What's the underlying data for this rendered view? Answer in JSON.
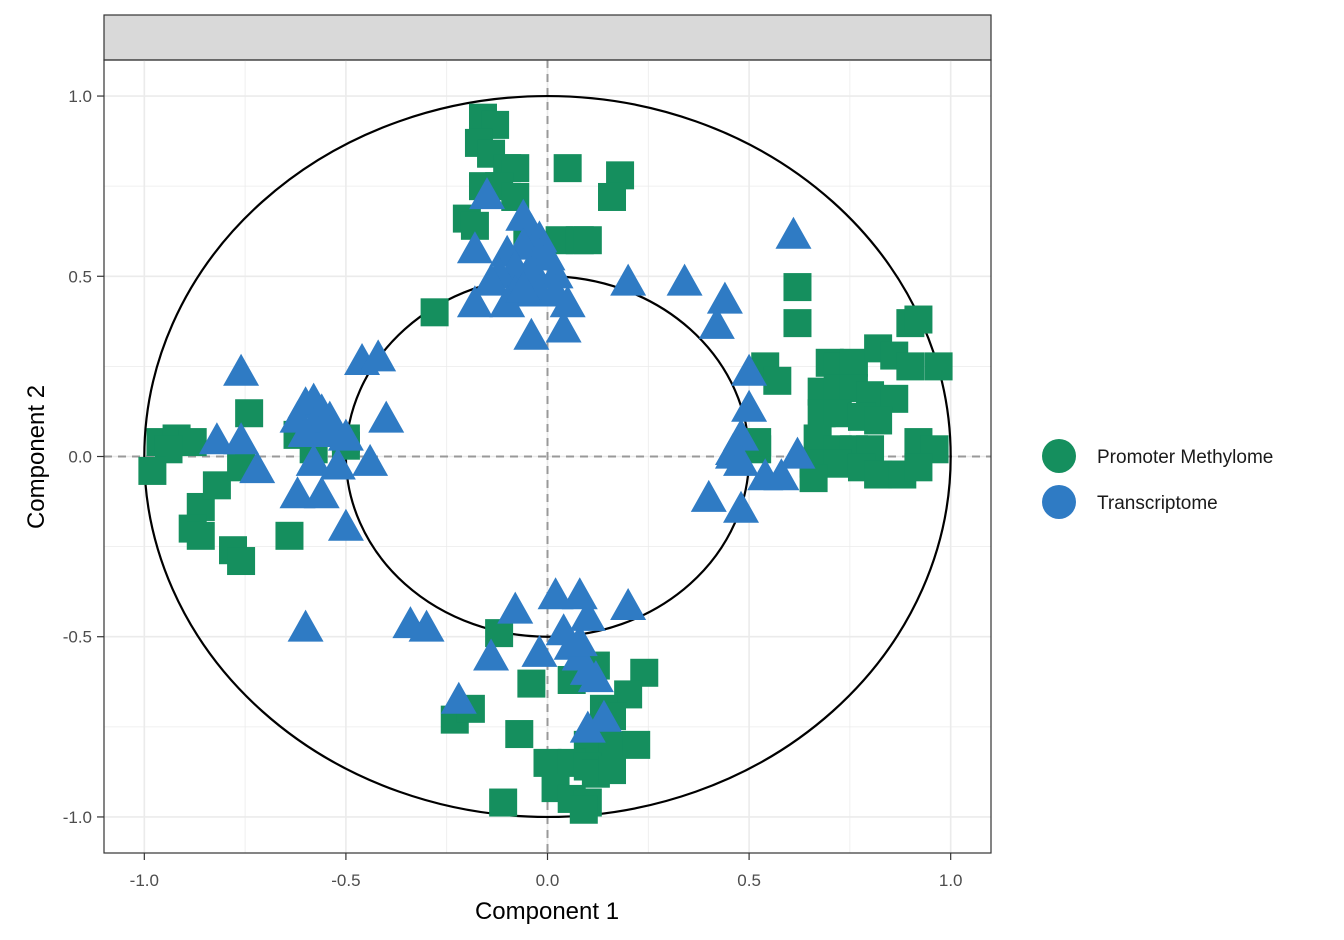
{
  "chart_data": {
    "type": "scatter",
    "title": "",
    "strip_label": "",
    "xlabel": "Component  1",
    "ylabel": "Component  2",
    "xlim": [
      -1.1,
      1.1
    ],
    "ylim": [
      -1.1,
      1.1
    ],
    "x_ticks": [
      -1.0,
      -0.5,
      0.0,
      0.5,
      1.0
    ],
    "x_tick_labels": [
      "-1.0",
      "-0.5",
      "0.0",
      "0.5",
      "1.0"
    ],
    "y_ticks": [
      -1.0,
      -0.5,
      0.0,
      0.5,
      1.0
    ],
    "y_tick_labels": [
      "-1.0",
      "-0.5",
      "0.0",
      "0.5",
      "1.0"
    ],
    "grid": true,
    "reference_lines": {
      "x": 0,
      "y": 0,
      "style": "dashed"
    },
    "circles": [
      {
        "center": [
          0,
          0
        ],
        "radius": 1.0
      },
      {
        "center": [
          0,
          0
        ],
        "radius": 0.5
      }
    ],
    "legend_position": "right",
    "series": [
      {
        "name": "Promoter Methylome",
        "color": "#158F5E",
        "marker": "square",
        "points": [
          [
            -0.16,
            0.94
          ],
          [
            -0.13,
            0.92
          ],
          [
            -0.17,
            0.87
          ],
          [
            -0.14,
            0.84
          ],
          [
            -0.1,
            0.8
          ],
          [
            -0.08,
            0.8
          ],
          [
            -0.16,
            0.75
          ],
          [
            -0.12,
            0.75
          ],
          [
            -0.08,
            0.72
          ],
          [
            0.05,
            0.8
          ],
          [
            0.18,
            0.78
          ],
          [
            0.16,
            0.72
          ],
          [
            -0.2,
            0.66
          ],
          [
            -0.18,
            0.64
          ],
          [
            -0.05,
            0.6
          ],
          [
            0.03,
            0.6
          ],
          [
            0.08,
            0.6
          ],
          [
            0.1,
            0.6
          ],
          [
            -0.28,
            0.4
          ],
          [
            0.62,
            0.47
          ],
          [
            0.62,
            0.37
          ],
          [
            0.54,
            0.25
          ],
          [
            0.57,
            0.21
          ],
          [
            0.7,
            0.26
          ],
          [
            0.72,
            0.25
          ],
          [
            0.76,
            0.26
          ],
          [
            0.82,
            0.3
          ],
          [
            0.86,
            0.28
          ],
          [
            0.9,
            0.37
          ],
          [
            0.92,
            0.38
          ],
          [
            0.9,
            0.25
          ],
          [
            0.97,
            0.25
          ],
          [
            0.68,
            0.18
          ],
          [
            0.72,
            0.19
          ],
          [
            0.76,
            0.19
          ],
          [
            0.8,
            0.17
          ],
          [
            0.86,
            0.16
          ],
          [
            0.68,
            0.12
          ],
          [
            0.72,
            0.12
          ],
          [
            0.78,
            0.11
          ],
          [
            0.82,
            0.1
          ],
          [
            0.67,
            0.05
          ],
          [
            0.72,
            0.02
          ],
          [
            0.76,
            0.02
          ],
          [
            0.8,
            0.02
          ],
          [
            0.92,
            0.04
          ],
          [
            0.96,
            0.02
          ],
          [
            0.66,
            -0.02
          ],
          [
            0.72,
            -0.02
          ],
          [
            0.78,
            -0.03
          ],
          [
            0.82,
            -0.05
          ],
          [
            0.88,
            -0.05
          ],
          [
            0.92,
            -0.03
          ],
          [
            0.66,
            -0.06
          ],
          [
            0.52,
            0.02
          ],
          [
            0.52,
            0.04
          ],
          [
            -0.96,
            0.04
          ],
          [
            -0.92,
            0.05
          ],
          [
            -0.88,
            0.04
          ],
          [
            -0.94,
            0.02
          ],
          [
            -0.98,
            -0.04
          ],
          [
            -0.86,
            -0.14
          ],
          [
            -0.82,
            -0.08
          ],
          [
            -0.88,
            -0.2
          ],
          [
            -0.86,
            -0.22
          ],
          [
            -0.78,
            -0.26
          ],
          [
            -0.76,
            -0.29
          ],
          [
            -0.74,
            0.12
          ],
          [
            -0.76,
            -0.03
          ],
          [
            -0.64,
            -0.22
          ],
          [
            -0.62,
            0.06
          ],
          [
            -0.58,
            0.02
          ],
          [
            -0.5,
            0.05
          ],
          [
            -0.5,
            0.03
          ],
          [
            -0.12,
            -0.49
          ],
          [
            -0.04,
            -0.63
          ],
          [
            0.06,
            -0.62
          ],
          [
            0.1,
            -0.6
          ],
          [
            0.12,
            -0.58
          ],
          [
            0.24,
            -0.6
          ],
          [
            0.2,
            -0.66
          ],
          [
            0.14,
            -0.7
          ],
          [
            0.16,
            -0.72
          ],
          [
            -0.23,
            -0.73
          ],
          [
            -0.19,
            -0.7
          ],
          [
            -0.07,
            -0.77
          ],
          [
            0.1,
            -0.8
          ],
          [
            0.16,
            -0.8
          ],
          [
            0.22,
            -0.8
          ],
          [
            0.0,
            -0.85
          ],
          [
            0.06,
            -0.85
          ],
          [
            0.1,
            -0.86
          ],
          [
            0.12,
            -0.88
          ],
          [
            0.16,
            -0.87
          ],
          [
            0.02,
            -0.92
          ],
          [
            0.06,
            -0.95
          ],
          [
            0.1,
            -0.96
          ],
          [
            -0.11,
            -0.96
          ],
          [
            0.09,
            -0.98
          ]
        ]
      },
      {
        "name": "Transcriptome",
        "color": "#2F7BC4",
        "marker": "triangle",
        "points": [
          [
            -0.15,
            0.72
          ],
          [
            -0.06,
            0.66
          ],
          [
            -0.04,
            0.62
          ],
          [
            -0.02,
            0.6
          ],
          [
            -0.06,
            0.58
          ],
          [
            -0.1,
            0.56
          ],
          [
            -0.02,
            0.55
          ],
          [
            0.0,
            0.55
          ],
          [
            -0.04,
            0.52
          ],
          [
            -0.08,
            0.52
          ],
          [
            -0.12,
            0.5
          ],
          [
            -0.04,
            0.5
          ],
          [
            0.02,
            0.5
          ],
          [
            -0.08,
            0.45
          ],
          [
            -0.02,
            0.45
          ],
          [
            0.02,
            0.45
          ],
          [
            -0.18,
            0.57
          ],
          [
            -0.14,
            0.48
          ],
          [
            -0.18,
            0.42
          ],
          [
            -0.1,
            0.42
          ],
          [
            0.05,
            0.42
          ],
          [
            -0.04,
            0.33
          ],
          [
            0.04,
            0.35
          ],
          [
            -0.06,
            0.46
          ],
          [
            0.2,
            0.48
          ],
          [
            0.34,
            0.48
          ],
          [
            0.44,
            0.43
          ],
          [
            0.42,
            0.36
          ],
          [
            0.61,
            0.61
          ],
          [
            0.5,
            0.23
          ],
          [
            0.5,
            0.13
          ],
          [
            0.48,
            0.05
          ],
          [
            0.46,
            0.0
          ],
          [
            0.46,
            0.01
          ],
          [
            0.48,
            -0.02
          ],
          [
            0.54,
            -0.06
          ],
          [
            0.58,
            -0.06
          ],
          [
            0.62,
            0.0
          ],
          [
            0.4,
            -0.12
          ],
          [
            0.48,
            -0.15
          ],
          [
            -0.76,
            0.23
          ],
          [
            -0.82,
            0.04
          ],
          [
            -0.76,
            0.04
          ],
          [
            -0.72,
            -0.04
          ],
          [
            -0.6,
            0.14
          ],
          [
            -0.58,
            0.15
          ],
          [
            -0.56,
            0.12
          ],
          [
            -0.62,
            0.1
          ],
          [
            -0.58,
            0.08
          ],
          [
            -0.54,
            0.1
          ],
          [
            -0.6,
            0.06
          ],
          [
            -0.54,
            0.06
          ],
          [
            -0.5,
            0.05
          ],
          [
            -0.46,
            0.26
          ],
          [
            -0.42,
            0.27
          ],
          [
            -0.4,
            0.1
          ],
          [
            -0.58,
            -0.02
          ],
          [
            -0.52,
            -0.03
          ],
          [
            -0.44,
            -0.02
          ],
          [
            -0.62,
            -0.11
          ],
          [
            -0.56,
            -0.11
          ],
          [
            -0.5,
            -0.2
          ],
          [
            -0.6,
            -0.48
          ],
          [
            -0.34,
            -0.47
          ],
          [
            -0.3,
            -0.48
          ],
          [
            -0.08,
            -0.43
          ],
          [
            0.02,
            -0.39
          ],
          [
            0.08,
            -0.39
          ],
          [
            0.1,
            -0.45
          ],
          [
            0.2,
            -0.42
          ],
          [
            0.04,
            -0.49
          ],
          [
            0.06,
            -0.53
          ],
          [
            0.08,
            -0.56
          ],
          [
            0.1,
            -0.6
          ],
          [
            0.12,
            -0.62
          ],
          [
            -0.02,
            -0.55
          ],
          [
            -0.14,
            -0.56
          ],
          [
            -0.22,
            -0.68
          ],
          [
            0.14,
            -0.73
          ],
          [
            0.1,
            -0.76
          ],
          [
            0.08,
            -0.52
          ]
        ]
      }
    ]
  }
}
